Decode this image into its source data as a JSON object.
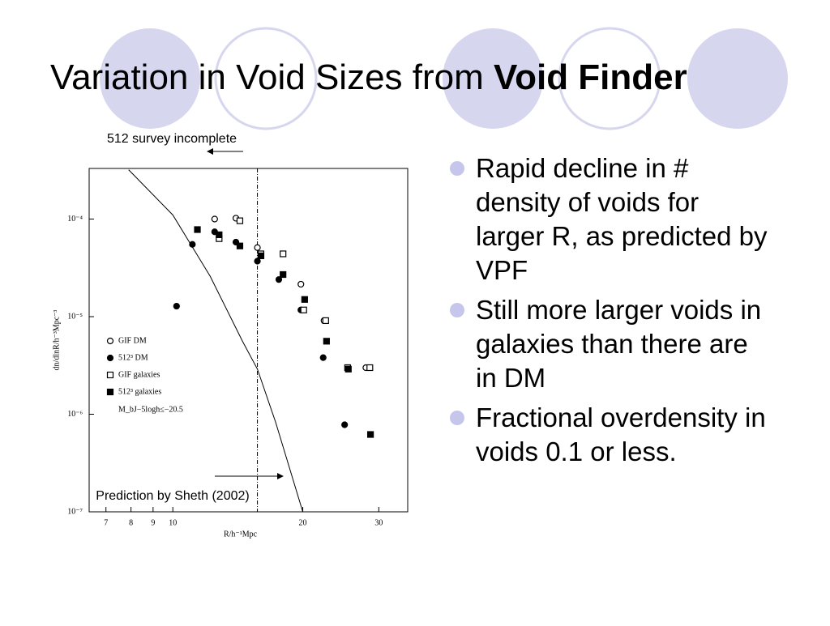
{
  "slide": {
    "title": "Variation in Void Sizes from",
    "title_bold": "Void Finder",
    "bullets": [
      "Rapid decline in # density of voids for larger R, as predicted by VPF",
      "Still more larger voids in galaxies than there are in DM",
      "Fractional overdensity in voids 0.1 or less."
    ]
  },
  "chart_data": {
    "type": "scatter",
    "xlabel": "R/h⁻¹Mpc",
    "ylabel": "dn/dlnR/h⁻³Mpc⁻³",
    "xscale": "log",
    "yscale": "log",
    "xlim": [
      6.4,
      35
    ],
    "ylim": [
      0.00033,
      1e-07
    ],
    "xticks": [
      7,
      8,
      9,
      10,
      20,
      30
    ],
    "yticks": [
      {
        "value": 0.0001,
        "label": "10⁻⁴"
      },
      {
        "value": 1e-05,
        "label": "10⁻⁵"
      },
      {
        "value": 1e-06,
        "label": "10⁻⁶"
      },
      {
        "value": 1e-07,
        "label": "10⁻⁷"
      }
    ],
    "annotation_top": "512 survey incomplete",
    "cutoff": 15.7,
    "annotation_bottom": "Prediction by Sheth (2002)",
    "legend_note": "M_bJ−5logh≤−20.5",
    "series": [
      {
        "name": "GIF DM",
        "marker": "circle-open",
        "color": "#000000",
        "x": [
          12.5,
          14.0,
          15.7,
          19.8,
          22.4,
          28.0
        ],
        "values": [
          0.0001,
          0.000102,
          5.1e-05,
          2.15e-05,
          9.1e-06,
          3e-06
        ]
      },
      {
        "name": "512³ DM",
        "marker": "circle-filled",
        "color": "#000000",
        "x": [
          10.2,
          11.1,
          12.5,
          14.0,
          15.7,
          17.6,
          19.8,
          22.3,
          25.0
        ],
        "values": [
          1.28e-05,
          5.5e-05,
          7.4e-05,
          5.8e-05,
          3.7e-05,
          2.4e-05,
          1.17e-05,
          3.8e-06,
          7.8e-07
        ]
      },
      {
        "name": "GIF galaxies",
        "marker": "square-open",
        "color": "#000000",
        "x": [
          12.8,
          14.3,
          16.0,
          18.0,
          20.1,
          22.6,
          25.4,
          28.6
        ],
        "values": [
          6.3e-05,
          9.6e-05,
          4.4e-05,
          4.4e-05,
          1.17e-05,
          9.1e-06,
          3e-06,
          3e-06
        ]
      },
      {
        "name": "512³ galaxies",
        "marker": "square-filled",
        "color": "#000000",
        "x": [
          11.4,
          12.8,
          14.3,
          16.0,
          18.0,
          20.2,
          22.7,
          25.5,
          28.7
        ],
        "values": [
          7.8e-05,
          6.9e-05,
          5.3e-05,
          4.2e-05,
          2.7e-05,
          1.5e-05,
          5.6e-06,
          2.9e-06,
          6.2e-07
        ]
      }
    ],
    "curve": {
      "x": [
        7.9,
        10,
        12.2,
        14.5,
        15.7,
        17.3,
        20.0
      ],
      "values": [
        0.00032,
        0.00011,
        2.6e-05,
        5.6e-06,
        2.9e-06,
        8.3e-07,
        1e-07
      ]
    }
  }
}
